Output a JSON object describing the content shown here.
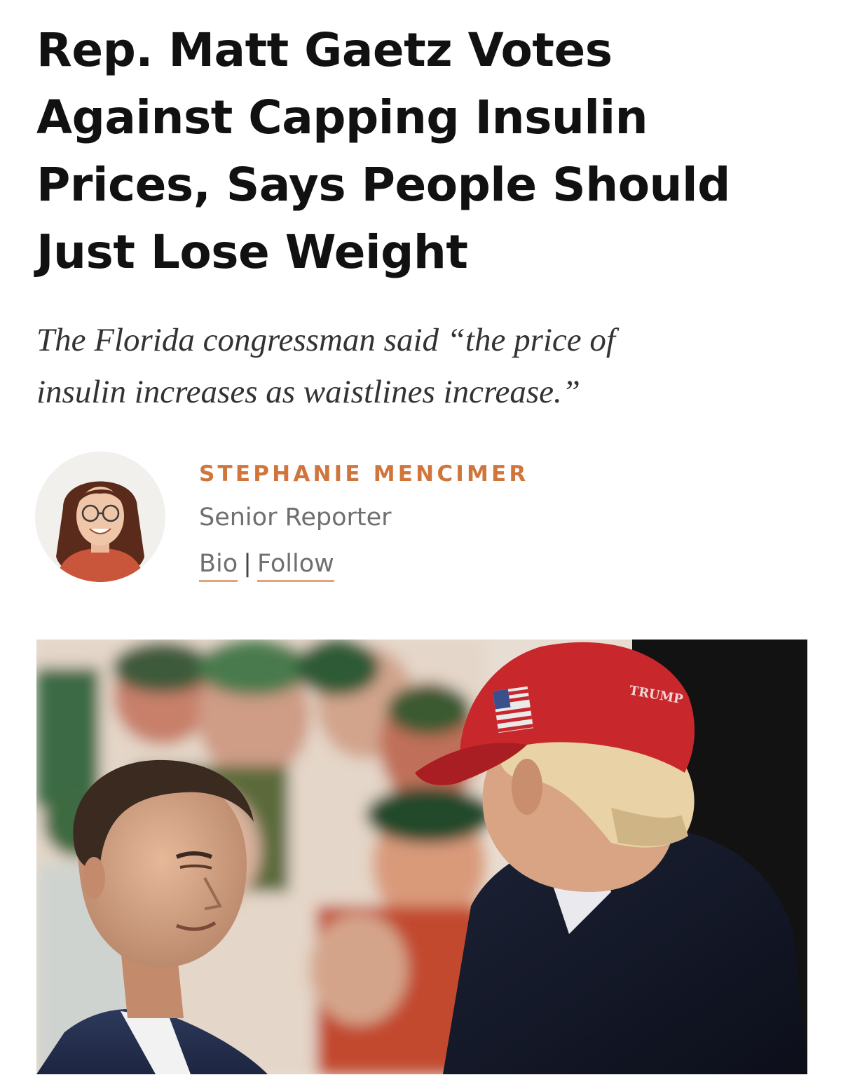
{
  "article": {
    "headline_lines": [
      "Rep. Matt Gaetz Votes",
      "Against Capping Insulin",
      "Prices, Says People Should",
      "Just Lose Weight"
    ],
    "dek_lines": [
      "The Florida congressman said “the price of",
      "insulin increases as waistlines increase.”"
    ]
  },
  "author": {
    "name": "STEPHANIE MENCIMER",
    "title": "Senior Reporter",
    "bio_label": "Bio",
    "separator": "|",
    "follow_label": "Follow"
  },
  "colors": {
    "accent": "#d0763c",
    "link_underline": "#e0a47c",
    "hat_red": "#c8282c"
  },
  "hero_image": {
    "icons": [
      "author-photo",
      "hero-photo"
    ],
    "hat_text": "TRUMP"
  }
}
